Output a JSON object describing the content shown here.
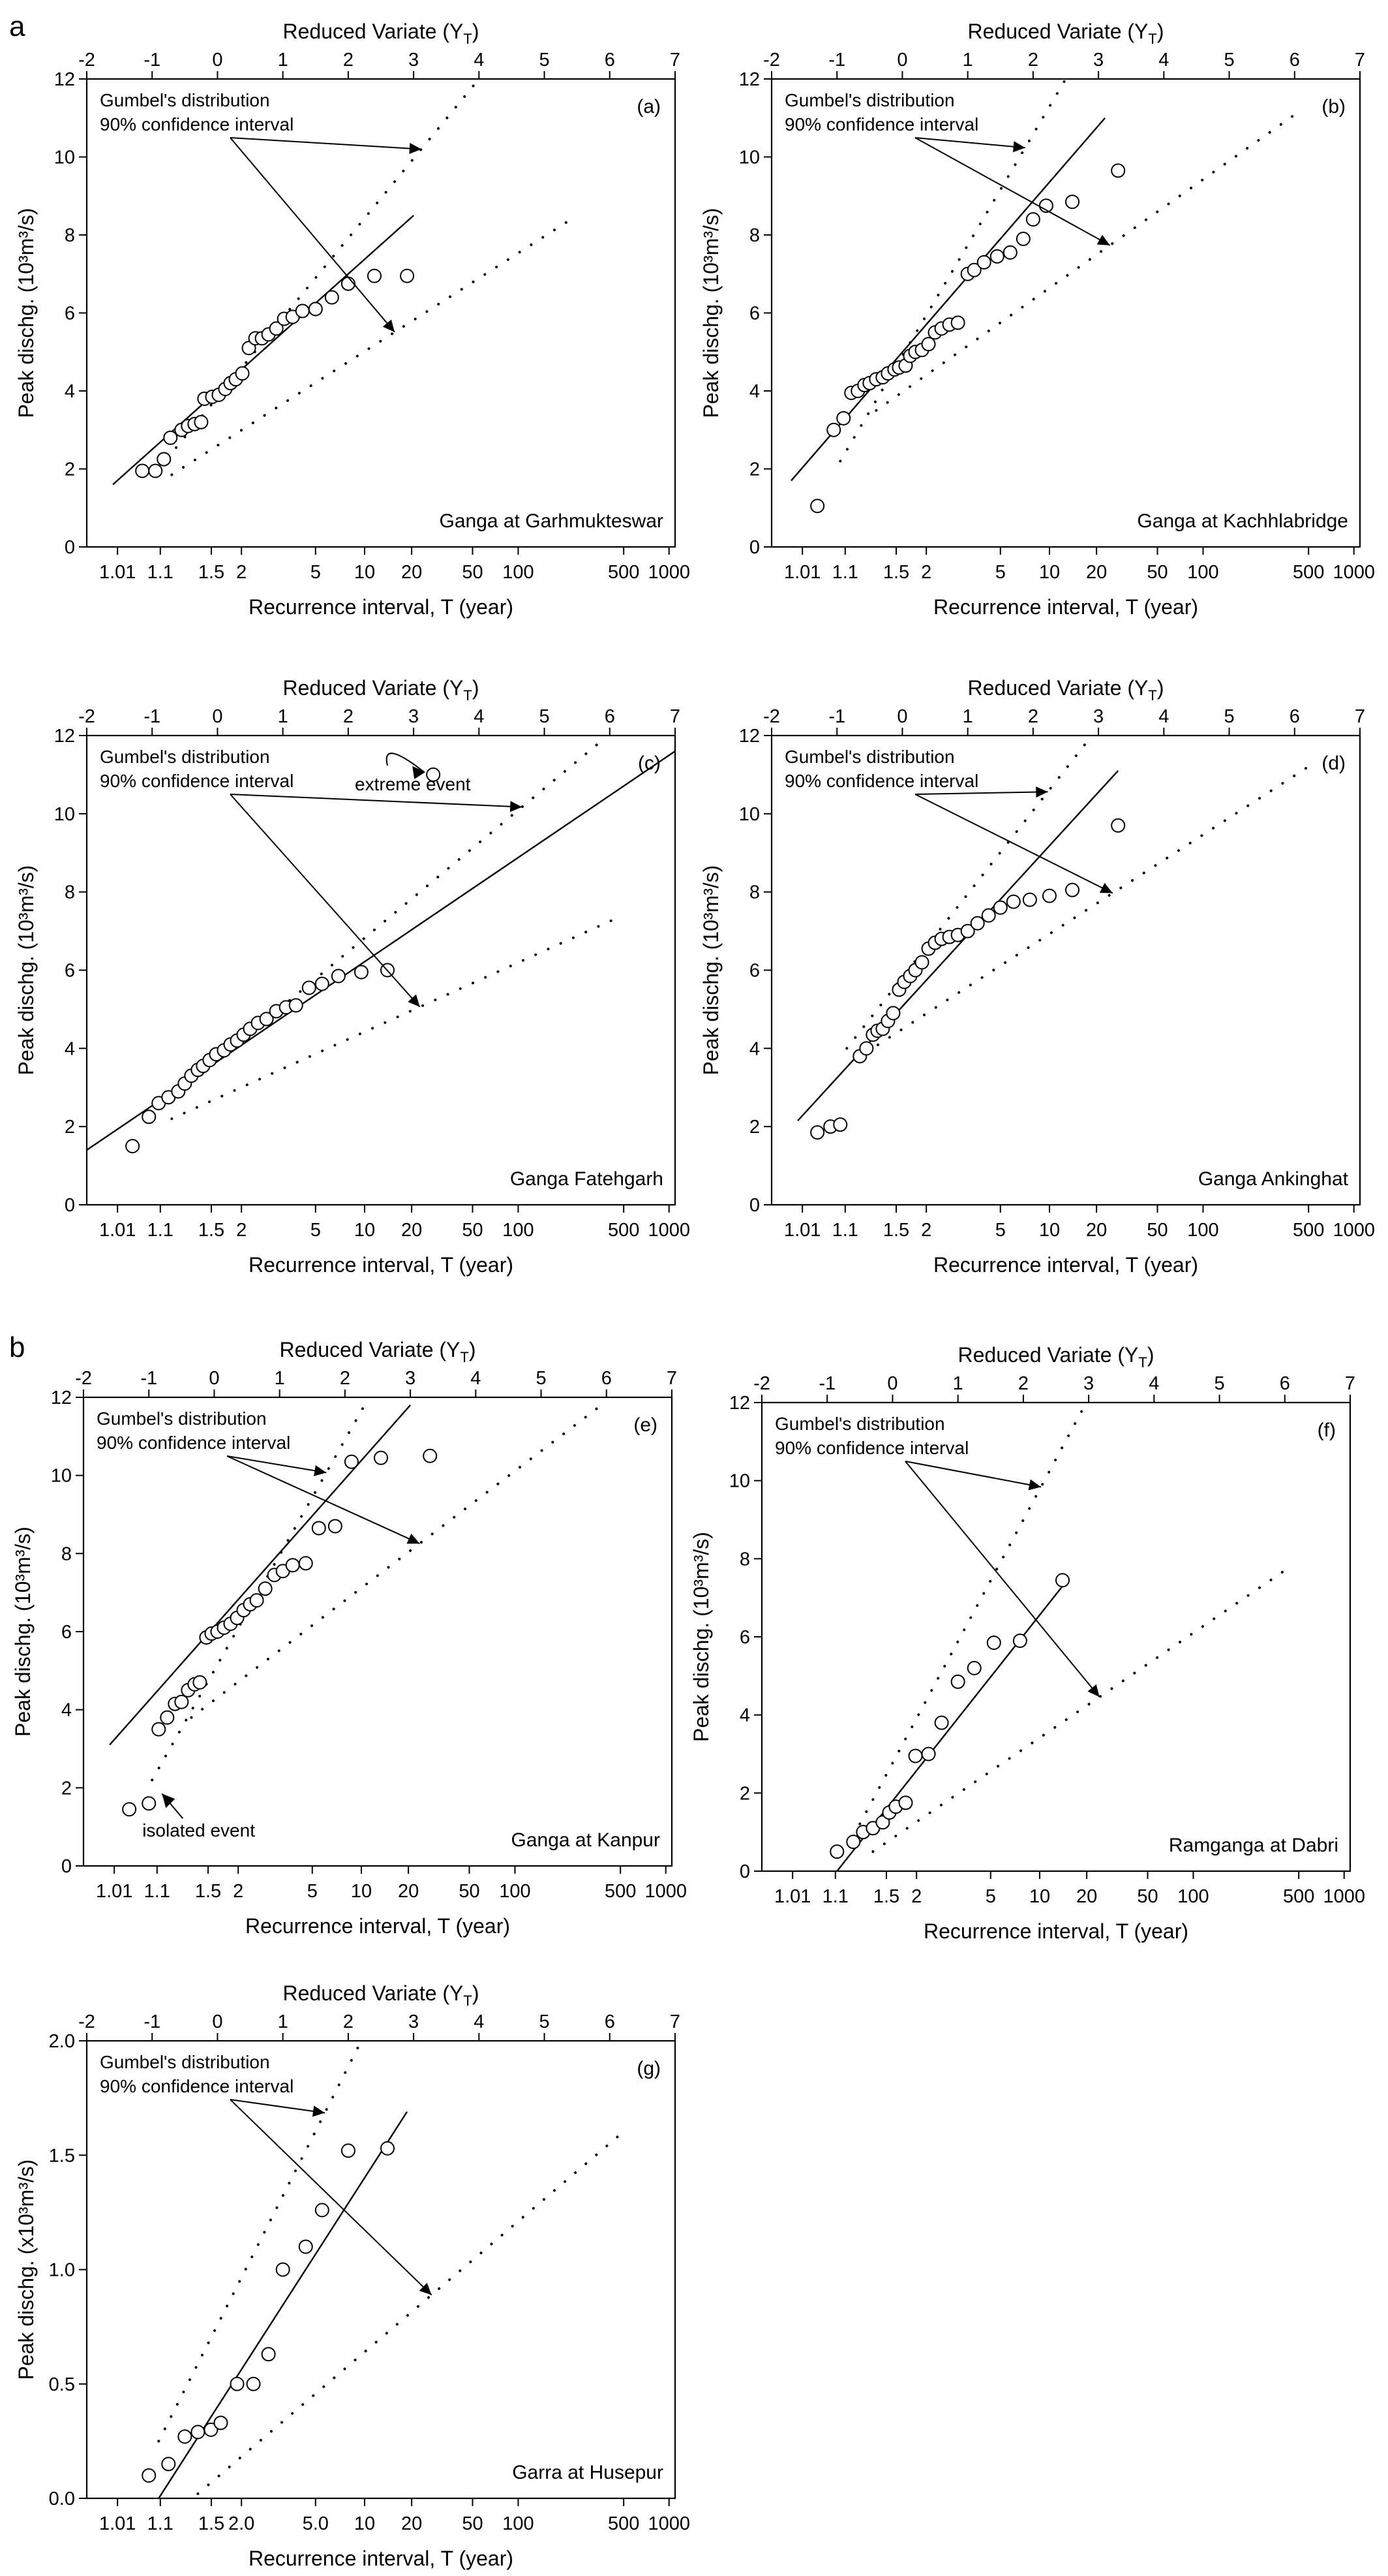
{
  "figure": {
    "section_labels": [
      "a",
      "b"
    ],
    "top_axis_title": "Reduced Variate (Y",
    "top_axis_sub": "T",
    "top_axis_close": ")",
    "bottom_axis_title": "Recurrence interval, T  (year)",
    "gumbel_label": "Gumbel's distribution",
    "ci_label": "90% confidence interval"
  },
  "chart_data": [
    {
      "type": "scatter",
      "id": "a",
      "panel_label": "(a)",
      "station": "Ganga at  Garhmukteswar",
      "y_label": "Peak dischg. (10³m³/s)",
      "ylim": [
        0,
        12
      ],
      "y_ticks": [
        0,
        2,
        4,
        6,
        8,
        10,
        12
      ],
      "y_tick_labels": [
        "0",
        "2",
        "4",
        "6",
        "8",
        "10",
        "12"
      ],
      "xlim_reduced_variate": [
        -2,
        7
      ],
      "x_top_ticks": [
        -2,
        -1,
        0,
        1,
        2,
        3,
        4,
        5,
        6,
        7
      ],
      "x_bottom_ticks_T": [
        1.01,
        1.1,
        1.5,
        2,
        5,
        10,
        20,
        50,
        100,
        500,
        1000
      ],
      "x_bottom_tick_labels": [
        "1.01",
        "1.1",
        "1.5",
        "2",
        "5",
        "10",
        "20",
        "50",
        "100",
        "500",
        "1000"
      ],
      "observed": {
        "x_reduced_variate": [
          -1.15,
          -0.95,
          -0.82,
          -0.72,
          -0.55,
          -0.45,
          -0.35,
          -0.25,
          -0.2,
          -0.08,
          0.02,
          0.12,
          0.2,
          0.28,
          0.38,
          0.48,
          0.58,
          0.68,
          0.78,
          0.9,
          1.02,
          1.15,
          1.3,
          1.5,
          1.75,
          2.0,
          2.4,
          2.9
        ],
        "y": [
          1.95,
          1.95,
          2.25,
          2.8,
          3.0,
          3.1,
          3.15,
          3.2,
          3.8,
          3.85,
          3.9,
          4.05,
          4.2,
          4.3,
          4.45,
          5.1,
          5.35,
          5.35,
          5.45,
          5.6,
          5.85,
          5.9,
          6.05,
          6.1,
          6.4,
          6.75,
          6.95,
          6.95
        ]
      },
      "fit_line": {
        "x_reduced_variate": [
          -1.6,
          3.0
        ],
        "y": [
          1.6,
          8.5
        ]
      },
      "ci_upper": {
        "x_reduced_variate": [
          -0.9,
          4.0
        ],
        "y": [
          2.0,
          12.0
        ]
      },
      "ci_lower": {
        "x_reduced_variate": [
          -0.7,
          5.5
        ],
        "y": [
          1.85,
          8.5
        ]
      },
      "annotations": [
        "Gumbel's distribution",
        "90% confidence interval"
      ]
    },
    {
      "type": "scatter",
      "id": "b",
      "panel_label": "(b)",
      "station": "Ganga at Kachhlabridge",
      "y_label": "Peak dischg. (10³m³/s)",
      "ylim": [
        0,
        12
      ],
      "y_ticks": [
        0,
        2,
        4,
        6,
        8,
        10,
        12
      ],
      "y_tick_labels": [
        "0",
        "2",
        "4",
        "6",
        "8",
        "10",
        "12"
      ],
      "xlim_reduced_variate": [
        -2,
        7
      ],
      "x_top_ticks": [
        -2,
        -1,
        0,
        1,
        2,
        3,
        4,
        5,
        6,
        7
      ],
      "x_bottom_ticks_T": [
        1.01,
        1.1,
        1.5,
        2,
        5,
        10,
        20,
        50,
        100,
        500,
        1000
      ],
      "x_bottom_tick_labels": [
        "1.01",
        "1.1",
        "1.5",
        "2",
        "5",
        "10",
        "20",
        "50",
        "100",
        "500",
        "1000"
      ],
      "observed": {
        "x_reduced_variate": [
          -1.3,
          -1.05,
          -0.9,
          -0.78,
          -0.68,
          -0.58,
          -0.5,
          -0.4,
          -0.3,
          -0.22,
          -0.12,
          -0.05,
          0.05,
          0.12,
          0.2,
          0.3,
          0.4,
          0.5,
          0.6,
          0.72,
          0.85,
          1.0,
          1.1,
          1.25,
          1.45,
          1.65,
          1.85,
          2.0,
          2.2,
          2.6,
          3.3
        ],
        "y": [
          1.05,
          3.0,
          3.3,
          3.95,
          4.0,
          4.15,
          4.2,
          4.3,
          4.35,
          4.45,
          4.55,
          4.6,
          4.65,
          4.9,
          5.0,
          5.05,
          5.2,
          5.5,
          5.6,
          5.7,
          5.75,
          7.0,
          7.1,
          7.3,
          7.45,
          7.55,
          7.9,
          8.4,
          8.75,
          8.85,
          9.65
        ]
      },
      "fit_line": {
        "x_reduced_variate": [
          -1.7,
          3.1
        ],
        "y": [
          1.7,
          11.0
        ]
      },
      "ci_upper": {
        "x_reduced_variate": [
          -0.95,
          2.5
        ],
        "y": [
          2.2,
          12.0
        ]
      },
      "ci_lower": {
        "x_reduced_variate": [
          -0.4,
          6.1
        ],
        "y": [
          3.5,
          11.2
        ]
      },
      "annotations": [
        "Gumbel's distribution",
        "90% confidence interval"
      ]
    },
    {
      "type": "scatter",
      "id": "c",
      "panel_label": "(c)",
      "station": "Ganga Fatehgarh",
      "y_label": "Peak dischg. (10³m³/s)",
      "ylim": [
        0,
        12
      ],
      "y_ticks": [
        0,
        2,
        4,
        6,
        8,
        10,
        12
      ],
      "y_tick_labels": [
        "0",
        "2",
        "4",
        "6",
        "8",
        "10",
        "12"
      ],
      "xlim_reduced_variate": [
        -2,
        7
      ],
      "x_top_ticks": [
        -2,
        -1,
        0,
        1,
        2,
        3,
        4,
        5,
        6,
        7
      ],
      "x_bottom_ticks_T": [
        1.01,
        1.1,
        1.5,
        2,
        5,
        10,
        20,
        50,
        100,
        500,
        1000
      ],
      "x_bottom_tick_labels": [
        "1.01",
        "1.1",
        "1.5",
        "2",
        "5",
        "10",
        "20",
        "50",
        "100",
        "500",
        "1000"
      ],
      "observed": {
        "x_reduced_variate": [
          -1.3,
          -1.05,
          -0.9,
          -0.75,
          -0.6,
          -0.5,
          -0.4,
          -0.3,
          -0.22,
          -0.12,
          -0.02,
          0.1,
          0.2,
          0.3,
          0.4,
          0.5,
          0.62,
          0.75,
          0.9,
          1.05,
          1.2,
          1.4,
          1.6,
          1.85,
          2.2,
          2.6,
          3.3
        ],
        "y": [
          1.5,
          2.25,
          2.6,
          2.75,
          2.9,
          3.1,
          3.3,
          3.45,
          3.55,
          3.7,
          3.85,
          3.95,
          4.1,
          4.2,
          4.35,
          4.5,
          4.65,
          4.75,
          4.95,
          5.05,
          5.1,
          5.55,
          5.65,
          5.85,
          5.95,
          6.0,
          11.0
        ]
      },
      "fit_line": {
        "x_reduced_variate": [
          -2.0,
          7.0
        ],
        "y": [
          1.4,
          11.6
        ]
      },
      "ci_upper": {
        "x_reduced_variate": [
          -1.0,
          5.9
        ],
        "y": [
          2.3,
          11.9
        ]
      },
      "ci_lower": {
        "x_reduced_variate": [
          -0.7,
          6.2
        ],
        "y": [
          2.2,
          7.4
        ]
      },
      "annotations": [
        "Gumbel's distribution",
        "90% confidence interval",
        "extreme event"
      ]
    },
    {
      "type": "scatter",
      "id": "d",
      "panel_label": "(d)",
      "station": "Ganga Ankinghat",
      "y_label": "Peak dischg. (10³m³/s)",
      "ylim": [
        0,
        12
      ],
      "y_ticks": [
        0,
        2,
        4,
        6,
        8,
        10,
        12
      ],
      "y_tick_labels": [
        "0",
        "2",
        "4",
        "6",
        "8",
        "10",
        "12"
      ],
      "xlim_reduced_variate": [
        -2,
        7
      ],
      "x_top_ticks": [
        -2,
        -1,
        0,
        1,
        2,
        3,
        4,
        5,
        6,
        7
      ],
      "x_bottom_ticks_T": [
        1.01,
        1.1,
        1.5,
        2,
        5,
        10,
        20,
        50,
        100,
        500,
        1000
      ],
      "x_bottom_tick_labels": [
        "1.01",
        "1.1",
        "1.5",
        "2",
        "5",
        "10",
        "20",
        "50",
        "100",
        "500",
        "1000"
      ],
      "observed": {
        "x_reduced_variate": [
          -1.3,
          -1.1,
          -0.95,
          -0.65,
          -0.55,
          -0.45,
          -0.38,
          -0.3,
          -0.22,
          -0.14,
          -0.05,
          0.03,
          0.12,
          0.2,
          0.3,
          0.4,
          0.5,
          0.6,
          0.72,
          0.85,
          1.0,
          1.15,
          1.32,
          1.5,
          1.7,
          1.95,
          2.25,
          2.6,
          3.3
        ],
        "y": [
          1.85,
          2.0,
          2.05,
          3.8,
          4.0,
          4.35,
          4.45,
          4.5,
          4.7,
          4.9,
          5.5,
          5.7,
          5.85,
          6.0,
          6.2,
          6.55,
          6.7,
          6.8,
          6.85,
          6.9,
          7.0,
          7.2,
          7.4,
          7.6,
          7.75,
          7.8,
          7.9,
          8.05,
          9.7
        ]
      },
      "fit_line": {
        "x_reduced_variate": [
          -1.6,
          3.3
        ],
        "y": [
          2.15,
          11.1
        ]
      },
      "ci_upper": {
        "x_reduced_variate": [
          -0.85,
          2.9
        ],
        "y": [
          4.0,
          12.0
        ]
      },
      "ci_lower": {
        "x_reduced_variate": [
          -0.55,
          6.3
        ],
        "y": [
          3.9,
          11.3
        ]
      },
      "annotations": [
        "Gumbel's distribution",
        "90% confidence interval"
      ]
    },
    {
      "type": "scatter",
      "id": "e",
      "panel_label": "(e)",
      "station": "Ganga at Kanpur",
      "y_label": "Peak dischg. (10³m³/s)",
      "ylim": [
        0,
        12
      ],
      "y_ticks": [
        0,
        2,
        4,
        6,
        8,
        10,
        12
      ],
      "y_tick_labels": [
        "0",
        "2",
        "4",
        "6",
        "8",
        "10",
        "12"
      ],
      "xlim_reduced_variate": [
        -2,
        7
      ],
      "x_top_ticks": [
        -2,
        -1,
        0,
        1,
        2,
        3,
        4,
        5,
        6,
        7
      ],
      "x_bottom_ticks_T": [
        1.01,
        1.1,
        1.5,
        2,
        5,
        10,
        20,
        50,
        100,
        500,
        1000
      ],
      "x_bottom_tick_labels": [
        "1.01",
        "1.1",
        "1.5",
        "2",
        "5",
        "10",
        "20",
        "50",
        "100",
        "500",
        "1000"
      ],
      "observed": {
        "x_reduced_variate": [
          -1.3,
          -1.0,
          -0.85,
          -0.72,
          -0.6,
          -0.5,
          -0.4,
          -0.3,
          -0.22,
          -0.12,
          -0.04,
          0.05,
          0.15,
          0.25,
          0.35,
          0.45,
          0.55,
          0.65,
          0.78,
          0.92,
          1.05,
          1.2,
          1.4,
          1.6,
          1.85,
          2.1,
          2.55,
          3.3
        ],
        "y": [
          1.45,
          1.6,
          3.5,
          3.8,
          4.15,
          4.2,
          4.5,
          4.65,
          4.7,
          5.85,
          5.95,
          6.0,
          6.1,
          6.2,
          6.35,
          6.55,
          6.7,
          6.8,
          7.1,
          7.45,
          7.55,
          7.7,
          7.75,
          8.65,
          8.7,
          10.35,
          10.45,
          10.5
        ]
      },
      "fit_line": {
        "x_reduced_variate": [
          -1.6,
          3.0
        ],
        "y": [
          3.1,
          11.8
        ]
      },
      "ci_upper": {
        "x_reduced_variate": [
          -0.95,
          2.3
        ],
        "y": [
          2.2,
          11.8
        ]
      },
      "ci_lower": {
        "x_reduced_variate": [
          -0.35,
          6.0
        ],
        "y": [
          3.8,
          11.9
        ]
      },
      "annotations": [
        "Gumbel's distribution",
        "90% confidence interval",
        "isolated event"
      ]
    },
    {
      "type": "scatter",
      "id": "f",
      "panel_label": "(f)",
      "station": "Ramganga at Dabri",
      "y_label": "Peak dischg. (10³m³/s)",
      "ylim": [
        0,
        12
      ],
      "y_ticks": [
        0,
        2,
        4,
        6,
        8,
        10,
        12
      ],
      "y_tick_labels": [
        "0",
        "2",
        "4",
        "6",
        "8",
        "10",
        "12"
      ],
      "xlim_reduced_variate": [
        -2,
        7
      ],
      "x_top_ticks": [
        -2,
        -1,
        0,
        1,
        2,
        3,
        4,
        5,
        6,
        7
      ],
      "x_bottom_ticks_T": [
        1.01,
        1.1,
        1.5,
        2,
        5,
        10,
        20,
        50,
        100,
        500,
        1000
      ],
      "x_bottom_tick_labels": [
        "1.01",
        "1.1",
        "1.5",
        "2",
        "5",
        "10",
        "20",
        "50",
        "100",
        "500",
        "1000"
      ],
      "observed": {
        "x_reduced_variate": [
          -0.85,
          -0.6,
          -0.45,
          -0.3,
          -0.15,
          -0.05,
          0.05,
          0.2,
          0.35,
          0.55,
          0.75,
          1.0,
          1.25,
          1.55,
          1.95,
          2.6
        ],
        "y": [
          0.5,
          0.75,
          1.0,
          1.1,
          1.25,
          1.5,
          1.65,
          1.75,
          2.95,
          3.0,
          3.8,
          4.85,
          5.2,
          5.85,
          5.9,
          7.45
        ]
      },
      "fit_line": {
        "x_reduced_variate": [
          -0.85,
          2.6
        ],
        "y": [
          0.0,
          7.3
        ]
      },
      "ci_upper": {
        "x_reduced_variate": [
          -0.6,
          2.9
        ],
        "y": [
          0.9,
          11.8
        ]
      },
      "ci_lower": {
        "x_reduced_variate": [
          -0.3,
          6.0
        ],
        "y": [
          0.5,
          7.7
        ]
      },
      "annotations": [
        "Gumbel's distribution",
        "90% confidence interval"
      ]
    },
    {
      "type": "scatter",
      "id": "g",
      "panel_label": "(g)",
      "station": "Garra at Husepur",
      "y_label": "Peak dischg. (x10³m³/s)",
      "ylim": [
        0,
        2.0
      ],
      "y_ticks": [
        0,
        0.5,
        1.0,
        1.5,
        2.0
      ],
      "y_tick_labels": [
        "0.0",
        "0.5",
        "1.0",
        "1.5",
        "2.0"
      ],
      "xlim_reduced_variate": [
        -2,
        7
      ],
      "x_top_ticks": [
        -2,
        -1,
        0,
        1,
        2,
        3,
        4,
        5,
        6,
        7
      ],
      "x_bottom_ticks_T": [
        1.01,
        1.1,
        1.5,
        2,
        5,
        10,
        20,
        50,
        100,
        500,
        1000
      ],
      "x_bottom_tick_labels": [
        "1.01",
        "1.1",
        "1.5",
        "2.0",
        "5.0",
        "10",
        "20",
        "50",
        "100",
        "500",
        "1000"
      ],
      "observed": {
        "x_reduced_variate": [
          -1.05,
          -0.75,
          -0.5,
          -0.3,
          -0.1,
          0.05,
          0.3,
          0.55,
          0.78,
          1.0,
          1.35,
          1.6,
          2.0,
          2.6
        ],
        "y": [
          0.1,
          0.15,
          0.27,
          0.29,
          0.3,
          0.33,
          0.5,
          0.5,
          0.63,
          1.0,
          1.1,
          1.26,
          1.52,
          1.53
        ]
      },
      "fit_line": {
        "x_reduced_variate": [
          -0.9,
          2.9
        ],
        "y": [
          0.0,
          1.69
        ]
      },
      "ci_upper": {
        "x_reduced_variate": [
          -0.9,
          2.2
        ],
        "y": [
          0.25,
          2.0
        ]
      },
      "ci_lower": {
        "x_reduced_variate": [
          -0.3,
          6.2
        ],
        "y": [
          0.02,
          1.6
        ]
      },
      "annotations": [
        "Gumbel's distribution",
        "90% confidence interval"
      ]
    }
  ]
}
